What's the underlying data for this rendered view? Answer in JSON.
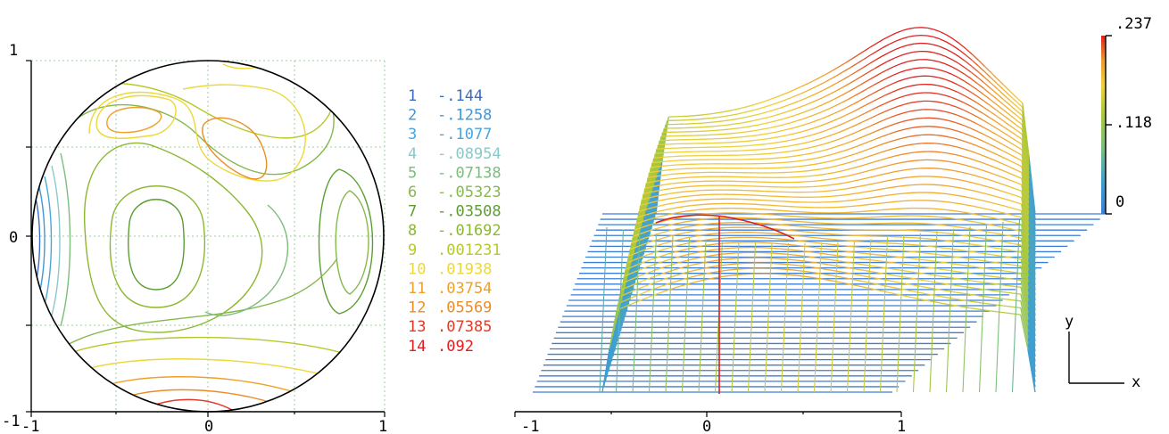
{
  "chart_data": [
    {
      "type": "contour",
      "x_ticks": [
        "-1",
        "0",
        "1"
      ],
      "y_ticks": [
        "1",
        "0",
        "-1"
      ],
      "xlim": [
        -1,
        1
      ],
      "ylim": [
        -1,
        1
      ],
      "grid": true,
      "aperture": "circle",
      "legend_placement": "right",
      "levels": [
        {
          "index": "1",
          "value": "-.144",
          "color": "#3a6cc4"
        },
        {
          "index": "2",
          "value": "-.1258",
          "color": "#3f98d8"
        },
        {
          "index": "3",
          "value": "-.1077",
          "color": "#4aa6da"
        },
        {
          "index": "4",
          "value": "-.08954",
          "color": "#8cc8c8"
        },
        {
          "index": "5",
          "value": "-.07138",
          "color": "#7cbd7c"
        },
        {
          "index": "6",
          "value": "-.05323",
          "color": "#86b84e"
        },
        {
          "index": "7",
          "value": "-.03508",
          "color": "#5c9e32"
        },
        {
          "index": "8",
          "value": "-.01692",
          "color": "#8cb830"
        },
        {
          "index": "9",
          "value": ".001231",
          "color": "#b8c82a"
        },
        {
          "index": "10",
          "value": ".01938",
          "color": "#ecd838"
        },
        {
          "index": "11",
          "value": ".03754",
          "color": "#f0a028"
        },
        {
          "index": "12",
          "value": ".05569",
          "color": "#ec8c24"
        },
        {
          "index": "13",
          "value": ".07385",
          "color": "#e43a28"
        },
        {
          "index": "14",
          "value": ".092",
          "color": "#e02020"
        }
      ]
    },
    {
      "type": "surface",
      "x_ticks": [
        "-1",
        "0",
        "1"
      ],
      "xlim": [
        -1,
        1
      ],
      "colorbar": {
        "ticks": [
          ".237",
          ".118",
          "0"
        ],
        "range": [
          0,
          0.237
        ],
        "colors": [
          "#3a7ed8",
          "#3fa0d0",
          "#7cc07c",
          "#a8c83a",
          "#f0d038",
          "#f09a2a",
          "#e02020"
        ]
      },
      "axis_labels": {
        "y": "y",
        "x": "x"
      }
    }
  ]
}
